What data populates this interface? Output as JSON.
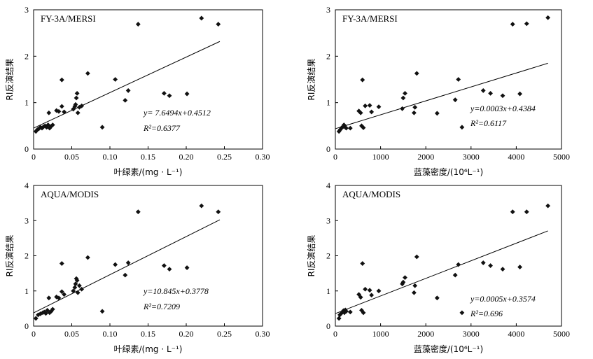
{
  "chart_data": [
    {
      "type": "scatter",
      "title": "FY-3A/MERSI",
      "xlabel": "叶绿素/(mg · L⁻¹)",
      "ylabel": "RI反演结果",
      "xlim": [
        0,
        0.3
      ],
      "ylim": [
        0,
        3
      ],
      "xticks": [
        0,
        0.05,
        0.1,
        0.15,
        0.2,
        0.25,
        0.3
      ],
      "xtick_labels": [
        "0",
        "0.05",
        "0.10",
        "0.15",
        "0.20",
        "0.25",
        "0.30"
      ],
      "yticks": [
        0,
        1,
        2,
        3
      ],
      "ytick_labels": [
        "0",
        "1",
        "2",
        "3"
      ],
      "equation": "y= 7.6494x+0.4512",
      "r2": "R²=0.6377",
      "fit": {
        "slope": 7.6494,
        "intercept": 0.4512,
        "x_range": [
          0,
          0.244
        ]
      },
      "points": [
        [
          0.003,
          0.38
        ],
        [
          0.005,
          0.42
        ],
        [
          0.007,
          0.44
        ],
        [
          0.009,
          0.47
        ],
        [
          0.011,
          0.45
        ],
        [
          0.013,
          0.48
        ],
        [
          0.015,
          0.5
        ],
        [
          0.017,
          0.47
        ],
        [
          0.019,
          0.52
        ],
        [
          0.021,
          0.45
        ],
        [
          0.023,
          0.49
        ],
        [
          0.025,
          0.52
        ],
        [
          0.02,
          0.78
        ],
        [
          0.03,
          0.83
        ],
        [
          0.033,
          0.81
        ],
        [
          0.037,
          0.92
        ],
        [
          0.04,
          0.8
        ],
        [
          0.037,
          1.49
        ],
        [
          0.052,
          0.86
        ],
        [
          0.054,
          0.92
        ],
        [
          0.055,
          0.96
        ],
        [
          0.056,
          1.1
        ],
        [
          0.057,
          1.2
        ],
        [
          0.058,
          0.78
        ],
        [
          0.06,
          0.9
        ],
        [
          0.063,
          0.93
        ],
        [
          0.071,
          1.63
        ],
        [
          0.09,
          0.47
        ],
        [
          0.107,
          1.5
        ],
        [
          0.12,
          1.05
        ],
        [
          0.124,
          1.26
        ],
        [
          0.137,
          2.69
        ],
        [
          0.171,
          1.2
        ],
        [
          0.178,
          1.15
        ],
        [
          0.201,
          1.19
        ],
        [
          0.22,
          2.82
        ],
        [
          0.242,
          2.69
        ]
      ]
    },
    {
      "type": "scatter",
      "title": "FY-3A/MERSI",
      "xlabel": "蓝藻密度/(10⁶L⁻¹)",
      "ylabel": "RI反演结果",
      "xlim": [
        0,
        5000
      ],
      "ylim": [
        0,
        3
      ],
      "xticks": [
        0,
        1000,
        2000,
        3000,
        4000,
        5000
      ],
      "xtick_labels": [
        "0",
        "1000",
        "2000",
        "3000",
        "4000",
        "5000"
      ],
      "yticks": [
        0,
        1,
        2,
        3
      ],
      "ytick_labels": [
        "0",
        "1",
        "2",
        "3"
      ],
      "equation": "y=0.0003x+0.4384",
      "r2": "R²=0.6117",
      "fit": {
        "slope": 0.0003,
        "intercept": 0.4384,
        "x_range": [
          0,
          4700
        ]
      },
      "points": [
        [
          80,
          0.38
        ],
        [
          110,
          0.42
        ],
        [
          140,
          0.46
        ],
        [
          170,
          0.48
        ],
        [
          200,
          0.5
        ],
        [
          220,
          0.47
        ],
        [
          190,
          0.52
        ],
        [
          240,
          0.45
        ],
        [
          330,
          0.45
        ],
        [
          520,
          0.82
        ],
        [
          560,
          0.78
        ],
        [
          580,
          0.5
        ],
        [
          620,
          0.46
        ],
        [
          600,
          1.49
        ],
        [
          660,
          0.93
        ],
        [
          760,
          0.94
        ],
        [
          800,
          0.8
        ],
        [
          960,
          0.91
        ],
        [
          1480,
          0.87
        ],
        [
          1500,
          1.1
        ],
        [
          1540,
          1.2
        ],
        [
          1740,
          0.78
        ],
        [
          1760,
          0.9
        ],
        [
          1800,
          1.63
        ],
        [
          2250,
          0.77
        ],
        [
          2650,
          1.06
        ],
        [
          2720,
          1.5
        ],
        [
          2800,
          0.47
        ],
        [
          3270,
          1.26
        ],
        [
          3430,
          1.2
        ],
        [
          3700,
          1.15
        ],
        [
          3920,
          2.69
        ],
        [
          4080,
          1.19
        ],
        [
          4230,
          2.7
        ],
        [
          4700,
          2.83
        ]
      ]
    },
    {
      "type": "scatter",
      "title": "AQUA/MODIS",
      "xlabel": "叶绿素/(mg · L⁻¹)",
      "ylabel": "RI反演结果",
      "xlim": [
        0,
        0.3
      ],
      "ylim": [
        0,
        4
      ],
      "xticks": [
        0,
        0.05,
        0.1,
        0.15,
        0.2,
        0.25,
        0.3
      ],
      "xtick_labels": [
        "0",
        "0.05",
        "0.10",
        "0.15",
        "0.20",
        "0.25",
        "0.30"
      ],
      "yticks": [
        0,
        1,
        2,
        3,
        4
      ],
      "ytick_labels": [
        "0",
        "1",
        "2",
        "3",
        "4"
      ],
      "equation": "y=10.845x+0.3778",
      "r2": "R²=0.7209",
      "fit": {
        "slope": 10.845,
        "intercept": 0.3778,
        "x_range": [
          0,
          0.244
        ]
      },
      "points": [
        [
          0.003,
          0.22
        ],
        [
          0.006,
          0.32
        ],
        [
          0.009,
          0.35
        ],
        [
          0.012,
          0.38
        ],
        [
          0.014,
          0.4
        ],
        [
          0.016,
          0.36
        ],
        [
          0.018,
          0.45
        ],
        [
          0.021,
          0.38
        ],
        [
          0.023,
          0.42
        ],
        [
          0.025,
          0.48
        ],
        [
          0.02,
          0.8
        ],
        [
          0.03,
          0.83
        ],
        [
          0.033,
          0.8
        ],
        [
          0.037,
          0.98
        ],
        [
          0.04,
          0.9
        ],
        [
          0.037,
          1.78
        ],
        [
          0.052,
          1.0
        ],
        [
          0.054,
          1.1
        ],
        [
          0.055,
          1.2
        ],
        [
          0.056,
          1.35
        ],
        [
          0.057,
          1.3
        ],
        [
          0.058,
          0.95
        ],
        [
          0.06,
          1.15
        ],
        [
          0.063,
          1.05
        ],
        [
          0.071,
          1.95
        ],
        [
          0.09,
          0.42
        ],
        [
          0.107,
          1.75
        ],
        [
          0.12,
          1.45
        ],
        [
          0.124,
          1.8
        ],
        [
          0.137,
          3.25
        ],
        [
          0.171,
          1.72
        ],
        [
          0.178,
          1.62
        ],
        [
          0.201,
          1.66
        ],
        [
          0.22,
          3.42
        ],
        [
          0.242,
          3.25
        ]
      ]
    },
    {
      "type": "scatter",
      "title": "AQUA/MODIS",
      "xlabel": "蓝藻密度/(10⁶L⁻¹)",
      "ylabel": "RI反演结果",
      "xlim": [
        0,
        5000
      ],
      "ylim": [
        0,
        4
      ],
      "xticks": [
        0,
        1000,
        2000,
        3000,
        4000,
        5000
      ],
      "xtick_labels": [
        "0",
        "1000",
        "2000",
        "3000",
        "4000",
        "5000"
      ],
      "yticks": [
        0,
        1,
        2,
        3,
        4
      ],
      "ytick_labels": [
        "0",
        "1",
        "2",
        "3",
        "4"
      ],
      "equation": "y=0.0005x+0.3574",
      "r2": "R²=0.696",
      "fit": {
        "slope": 0.0005,
        "intercept": 0.3574,
        "x_range": [
          0,
          4700
        ]
      },
      "points": [
        [
          80,
          0.22
        ],
        [
          100,
          0.32
        ],
        [
          130,
          0.36
        ],
        [
          160,
          0.4
        ],
        [
          180,
          0.44
        ],
        [
          200,
          0.38
        ],
        [
          220,
          0.46
        ],
        [
          240,
          0.42
        ],
        [
          330,
          0.4
        ],
        [
          520,
          0.9
        ],
        [
          560,
          0.82
        ],
        [
          580,
          0.45
        ],
        [
          620,
          0.38
        ],
        [
          600,
          1.78
        ],
        [
          660,
          1.05
        ],
        [
          760,
          1.02
        ],
        [
          800,
          0.88
        ],
        [
          960,
          1.0
        ],
        [
          1480,
          1.2
        ],
        [
          1500,
          1.25
        ],
        [
          1540,
          1.38
        ],
        [
          1740,
          0.95
        ],
        [
          1760,
          1.15
        ],
        [
          1800,
          1.97
        ],
        [
          2250,
          0.8
        ],
        [
          2650,
          1.45
        ],
        [
          2720,
          1.75
        ],
        [
          2800,
          0.38
        ],
        [
          3270,
          1.8
        ],
        [
          3430,
          1.72
        ],
        [
          3700,
          1.62
        ],
        [
          3920,
          3.25
        ],
        [
          4080,
          1.68
        ],
        [
          4230,
          3.25
        ],
        [
          4700,
          3.42
        ]
      ]
    }
  ]
}
